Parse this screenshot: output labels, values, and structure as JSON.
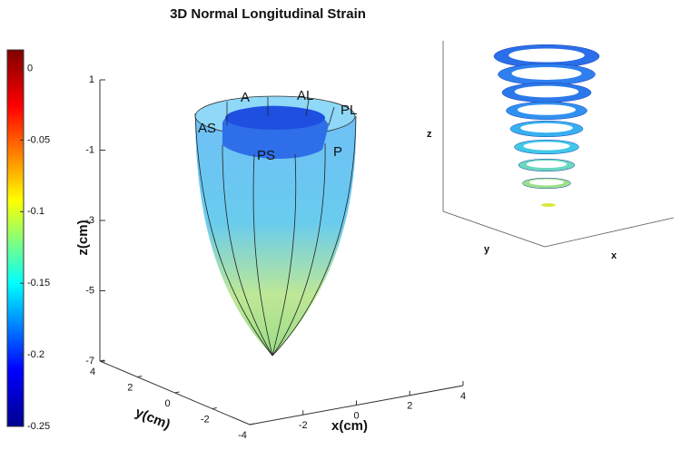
{
  "chart_data": {
    "type": "surface3d",
    "title": "3D Normal Longitudinal Strain",
    "colorbar": {
      "lim": [
        -0.25,
        0.013
      ],
      "ticks": [
        0,
        -0.05,
        -0.1,
        -0.15,
        -0.2,
        -0.25
      ]
    },
    "zlabel": "z(cm)",
    "ylabel": "y(cm)",
    "xlabel": "x(cm)",
    "zlim": [
      -7,
      1
    ],
    "zticks": [
      1,
      -1,
      -3,
      -5,
      -7
    ],
    "ylim": [
      -4,
      4
    ],
    "yticks": [
      4,
      2,
      0,
      -2,
      -4
    ],
    "xlim": [
      -4,
      4
    ],
    "xticks": [
      -2,
      0,
      2,
      4
    ],
    "segments": [
      "A",
      "AL",
      "PL",
      "AS",
      "PS",
      "P"
    ],
    "inset": {
      "zlabel": "z",
      "ylabel": "y",
      "xlabel": "x"
    }
  }
}
